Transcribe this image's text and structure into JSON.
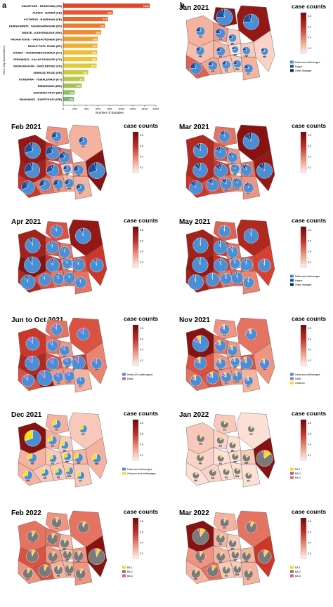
{
  "panel_a": {
    "letter": "a",
    "chart_data": {
      "type": "bar",
      "orientation": "horizontal",
      "xlabel": "Number of Samples",
      "ylabel": "Pune City Ward Offices",
      "xlim": [
        0,
        1600
      ],
      "xticks": [
        0,
        200,
        400,
        600,
        800,
        1000,
        1200,
        1400,
        1600
      ],
      "categories": [
        "HADAPSAR - MUNDHWA (HM)",
        "AUNDH - BANER (AB)",
        "KOTHRUD - BAWDHAN (KB)",
        "DHANKAWADI - SAHAKARNAGAR (DS)",
        "WARJE - KARVENAGAR (WK)",
        "NAGAR ROAD - VADGAONSHERI (NV)",
        "DHOLE PATIL ROAD (DP)",
        "KASBA - VISHRAMBAUGWADA (KV)",
        "YERAWADA - KALAS DHANORI (YK)",
        "SHIVAJINAGAR - GHOLEROAD (SG)",
        "SINHGAD ROAD (SR)",
        "KONDHWA - YEWALEWADI (KY)",
        "BIBWEWADI (BW)",
        "BHAWANI PETH (BP)",
        "WANAWADI - RAMTEKADI (WR)"
      ],
      "values": [
        1492,
        856,
        772,
        721,
        652,
        598,
        590,
        585,
        584,
        575,
        431,
        367,
        320,
        198,
        185
      ],
      "value_labels": [
        "1492",
        "856",
        "772",
        "721",
        "652",
        "598",
        "590",
        "585",
        "584",
        "575",
        "431",
        "367",
        "320",
        "198",
        "185"
      ],
      "colors": [
        "#e0452a",
        "#e3582c",
        "#e66a2d",
        "#e97c2f",
        "#ec8d30",
        "#ef9e31",
        "#f0ad32",
        "#f1bb34",
        "#eec537",
        "#e1c93c",
        "#cec941",
        "#b9c64a",
        "#a2c258",
        "#8cbd66",
        "#76b873"
      ]
    }
  },
  "panel_b": {
    "letter": "b",
    "legend_title": "case counts",
    "colorbar_ticks": [
      "0.8",
      "0.6",
      "0.4",
      "0.2"
    ],
    "maps": [
      {
        "title": "Jan 2021",
        "lineages": [
          {
            "name": "Delta and sublineages",
            "color": "#4a8fd6"
          },
          {
            "name": "Kappa",
            "color": "#1f4f9c"
          },
          {
            "name": "Other lineages",
            "color": "#0d2a5e"
          }
        ]
      },
      {
        "title": "Feb 2021",
        "lineages": []
      },
      {
        "title": "Mar 2021",
        "lineages": []
      },
      {
        "title": "Apr 2021",
        "lineages": []
      },
      {
        "title": "May 2021",
        "lineages": [
          {
            "name": "Delta and sublineages",
            "color": "#4a8fd6"
          },
          {
            "name": "Kappa",
            "color": "#1f4f9c"
          },
          {
            "name": "Other lineages",
            "color": "#0d2a5e"
          }
        ]
      },
      {
        "title": "Jun to Oct 2021",
        "lineages": [
          {
            "name": "Delta (AY sublineages)",
            "color": "#4a8fd6"
          },
          {
            "name": "Delta",
            "color": "#b06cc9"
          }
        ]
      },
      {
        "title": "Nov 2021",
        "lineages": [
          {
            "name": "Delta and sublineages",
            "color": "#4a8fd6"
          },
          {
            "name": "Delta",
            "color": "#b06cc9"
          },
          {
            "name": "Omicron",
            "color": "#f2e01b"
          }
        ]
      },
      {
        "title": "Dec 2021",
        "lineages": [
          {
            "name": "Delta and sublineages",
            "color": "#4a8fd6"
          },
          {
            "name": "Omicron and sublineages",
            "color": "#f2e01b"
          }
        ]
      },
      {
        "title": "Jan 2022",
        "lineages": [
          {
            "name": "BA.1",
            "color": "#f2e01b"
          },
          {
            "name": "BA.2",
            "color": "#7a7a7a"
          },
          {
            "name": "BA.3",
            "color": "#e85d8a"
          }
        ]
      },
      {
        "title": "Feb 2022",
        "lineages": [
          {
            "name": "BA.1",
            "color": "#f2e01b"
          },
          {
            "name": "BA.2",
            "color": "#7a7a7a"
          },
          {
            "name": "BA.3",
            "color": "#e85d8a"
          }
        ]
      },
      {
        "title": "Mar 2022",
        "lineages": [
          {
            "name": "BA.1",
            "color": "#f2e01b"
          },
          {
            "name": "BA.2",
            "color": "#7a7a7a"
          },
          {
            "name": "BA.3",
            "color": "#e85d8a"
          }
        ]
      }
    ],
    "ward_labels": [
      "HM",
      "AB",
      "KB",
      "DS",
      "WK",
      "NV",
      "DP",
      "KV",
      "YK",
      "SG",
      "SR",
      "KY",
      "BW",
      "BP",
      "WR"
    ]
  }
}
